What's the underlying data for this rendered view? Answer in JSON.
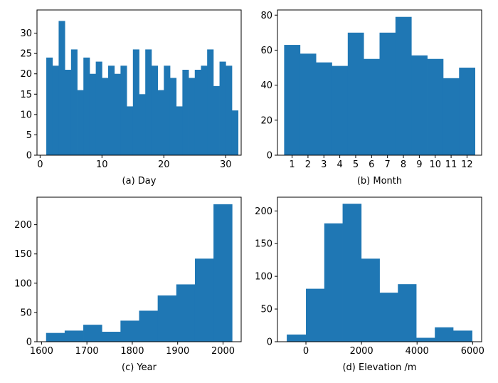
{
  "chart_data": [
    {
      "type": "bar",
      "subplot": "a",
      "xlabel": "(a) Day",
      "x_range": [
        -0.5,
        32.5
      ],
      "y_range": [
        0,
        35.7
      ],
      "xticks": [
        0,
        10,
        20,
        30
      ],
      "yticks": [
        0,
        5,
        10,
        15,
        20,
        25,
        30
      ],
      "bins": [
        {
          "start": 1.0,
          "end": 2.0,
          "count": 24
        },
        {
          "start": 2.0,
          "end": 3.0,
          "count": 22
        },
        {
          "start": 3.0,
          "end": 4.0,
          "count": 33
        },
        {
          "start": 4.0,
          "end": 5.0,
          "count": 21
        },
        {
          "start": 5.0,
          "end": 6.0,
          "count": 26
        },
        {
          "start": 6.0,
          "end": 7.0,
          "count": 16
        },
        {
          "start": 7.0,
          "end": 8.0,
          "count": 24
        },
        {
          "start": 8.0,
          "end": 9.0,
          "count": 20
        },
        {
          "start": 9.0,
          "end": 10.0,
          "count": 23
        },
        {
          "start": 10.0,
          "end": 11.0,
          "count": 19
        },
        {
          "start": 11.0,
          "end": 12.0,
          "count": 22
        },
        {
          "start": 12.0,
          "end": 13.0,
          "count": 20
        },
        {
          "start": 13.0,
          "end": 14.0,
          "count": 22
        },
        {
          "start": 14.0,
          "end": 15.0,
          "count": 12
        },
        {
          "start": 15.0,
          "end": 16.0,
          "count": 26
        },
        {
          "start": 16.0,
          "end": 17.0,
          "count": 15
        },
        {
          "start": 17.0,
          "end": 18.0,
          "count": 26
        },
        {
          "start": 18.0,
          "end": 19.0,
          "count": 22
        },
        {
          "start": 19.0,
          "end": 20.0,
          "count": 16
        },
        {
          "start": 20.0,
          "end": 21.0,
          "count": 22
        },
        {
          "start": 21.0,
          "end": 22.0,
          "count": 19
        },
        {
          "start": 22.0,
          "end": 23.0,
          "count": 12
        },
        {
          "start": 23.0,
          "end": 24.0,
          "count": 21
        },
        {
          "start": 24.0,
          "end": 25.0,
          "count": 19
        },
        {
          "start": 25.0,
          "end": 26.0,
          "count": 21
        },
        {
          "start": 26.0,
          "end": 27.0,
          "count": 22
        },
        {
          "start": 27.0,
          "end": 28.0,
          "count": 26
        },
        {
          "start": 28.0,
          "end": 29.0,
          "count": 17
        },
        {
          "start": 29.0,
          "end": 30.0,
          "count": 23
        },
        {
          "start": 30.0,
          "end": 31.0,
          "count": 22
        },
        {
          "start": 31.0,
          "end": 32.0,
          "count": 11
        }
      ]
    },
    {
      "type": "bar",
      "subplot": "b",
      "xlabel": "(b) Month",
      "x_range": [
        0.08,
        12.92
      ],
      "y_range": [
        0,
        82.95
      ],
      "xticks": [
        1,
        2,
        3,
        4,
        5,
        6,
        7,
        8,
        9,
        10,
        11,
        12
      ],
      "yticks": [
        0,
        20,
        40,
        60,
        80
      ],
      "bins": [
        {
          "start": 0.5,
          "end": 1.5,
          "count": 63
        },
        {
          "start": 1.5,
          "end": 2.5,
          "count": 58
        },
        {
          "start": 2.5,
          "end": 3.5,
          "count": 53
        },
        {
          "start": 3.5,
          "end": 4.5,
          "count": 51
        },
        {
          "start": 4.5,
          "end": 5.5,
          "count": 70
        },
        {
          "start": 5.5,
          "end": 6.5,
          "count": 55
        },
        {
          "start": 6.5,
          "end": 7.5,
          "count": 70
        },
        {
          "start": 7.5,
          "end": 8.5,
          "count": 79
        },
        {
          "start": 8.5,
          "end": 9.5,
          "count": 57
        },
        {
          "start": 9.5,
          "end": 10.5,
          "count": 55
        },
        {
          "start": 10.5,
          "end": 11.5,
          "count": 44
        },
        {
          "start": 11.5,
          "end": 12.5,
          "count": 50
        }
      ]
    },
    {
      "type": "bar",
      "subplot": "c",
      "xlabel": "(c) Year",
      "x_range": [
        1590,
        2040
      ],
      "y_range": [
        0,
        247
      ],
      "xticks": [
        1600,
        1700,
        1800,
        1900,
        2000
      ],
      "yticks": [
        0,
        50,
        100,
        150,
        200
      ],
      "bins": [
        {
          "start": 1610,
          "end": 1651,
          "count": 15
        },
        {
          "start": 1651,
          "end": 1692,
          "count": 19
        },
        {
          "start": 1692,
          "end": 1733,
          "count": 29
        },
        {
          "start": 1733,
          "end": 1774,
          "count": 17
        },
        {
          "start": 1774,
          "end": 1815,
          "count": 36
        },
        {
          "start": 1815,
          "end": 1856,
          "count": 53
        },
        {
          "start": 1856,
          "end": 1897,
          "count": 79
        },
        {
          "start": 1897,
          "end": 1938,
          "count": 98
        },
        {
          "start": 1938,
          "end": 1979,
          "count": 142
        },
        {
          "start": 1979,
          "end": 2020,
          "count": 235
        }
      ]
    },
    {
      "type": "bar",
      "subplot": "d",
      "xlabel": "(d) Elevation /m",
      "x_range": [
        -1025,
        6325
      ],
      "y_range": [
        0,
        221
      ],
      "xticks": [
        0,
        2000,
        4000,
        6000
      ],
      "yticks": [
        0,
        50,
        100,
        150,
        200
      ],
      "bins": [
        {
          "start": -690,
          "end": 0,
          "count": 11
        },
        {
          "start": 0,
          "end": 660,
          "count": 81
        },
        {
          "start": 660,
          "end": 1320,
          "count": 181
        },
        {
          "start": 1320,
          "end": 1990,
          "count": 211
        },
        {
          "start": 1990,
          "end": 2650,
          "count": 127
        },
        {
          "start": 2650,
          "end": 3310,
          "count": 75
        },
        {
          "start": 3310,
          "end": 3970,
          "count": 88
        },
        {
          "start": 3970,
          "end": 4640,
          "count": 6
        },
        {
          "start": 4640,
          "end": 5300,
          "count": 22
        },
        {
          "start": 5300,
          "end": 5980,
          "count": 17
        }
      ]
    }
  ],
  "colors": {
    "bar": "#1f77b4",
    "axis": "#000000"
  }
}
